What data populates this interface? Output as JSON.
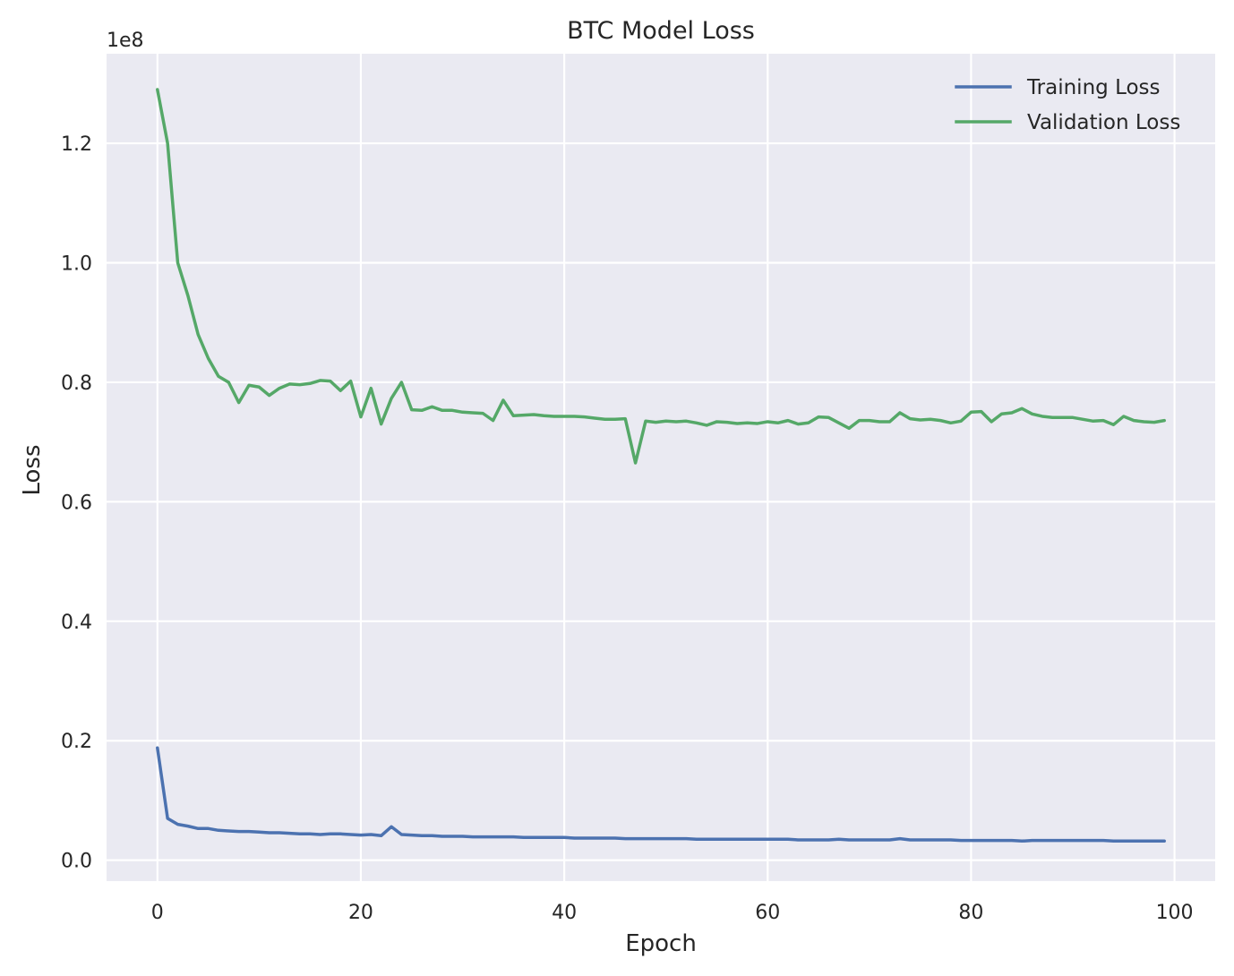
{
  "chart_data": {
    "type": "line",
    "title": "BTC Model Loss",
    "xlabel": "Epoch",
    "ylabel": "Loss",
    "y_offset_label": "1e8",
    "xlim": [
      -5,
      104
    ],
    "ylim": [
      -3.5,
      135
    ],
    "y_units": "1e6",
    "grid": true,
    "legend_position": "top-right",
    "x_ticks": [
      0,
      20,
      40,
      60,
      80,
      100
    ],
    "x_tick_labels": [
      "0",
      "20",
      "40",
      "60",
      "80",
      "100"
    ],
    "y_ticks": [
      0,
      20,
      40,
      60,
      80,
      100,
      120
    ],
    "y_tick_labels": [
      "0.0",
      "0.2",
      "0.4",
      "0.6",
      "0.8",
      "1.0",
      "1.2"
    ],
    "series": [
      {
        "name": "Training Loss",
        "color": "#4c72b0",
        "values": [
          18.8,
          7.0,
          6.0,
          5.7,
          5.3,
          5.3,
          5.0,
          4.9,
          4.8,
          4.8,
          4.7,
          4.6,
          4.6,
          4.5,
          4.4,
          4.4,
          4.3,
          4.4,
          4.4,
          4.3,
          4.2,
          4.3,
          4.1,
          5.6,
          4.3,
          4.2,
          4.1,
          4.1,
          4.0,
          4.0,
          4.0,
          3.9,
          3.9,
          3.9,
          3.9,
          3.9,
          3.8,
          3.8,
          3.8,
          3.8,
          3.8,
          3.7,
          3.7,
          3.7,
          3.7,
          3.7,
          3.6,
          3.6,
          3.6,
          3.6,
          3.6,
          3.6,
          3.6,
          3.5,
          3.5,
          3.5,
          3.5,
          3.5,
          3.5,
          3.5,
          3.5,
          3.5,
          3.5,
          3.4,
          3.4,
          3.4,
          3.4,
          3.5,
          3.4,
          3.4,
          3.4,
          3.4,
          3.4,
          3.6,
          3.4,
          3.4,
          3.4,
          3.4,
          3.4,
          3.3,
          3.3,
          3.3,
          3.3,
          3.3,
          3.3,
          3.2,
          3.3,
          3.3,
          3.3,
          3.3,
          3.3,
          3.3,
          3.3,
          3.3,
          3.2,
          3.2,
          3.2,
          3.2,
          3.2,
          3.2
        ]
      },
      {
        "name": "Validation Loss",
        "color": "#55a868",
        "values": [
          129.0,
          120.0,
          100.0,
          94.5,
          88.0,
          84.0,
          81.0,
          80.0,
          76.6,
          79.5,
          79.2,
          77.8,
          79.0,
          79.7,
          79.6,
          79.8,
          80.3,
          80.2,
          78.6,
          80.2,
          74.2,
          79.0,
          73.0,
          77.3,
          80.0,
          75.4,
          75.3,
          75.9,
          75.3,
          75.3,
          75.0,
          74.9,
          74.8,
          73.6,
          77.0,
          74.4,
          74.5,
          74.6,
          74.4,
          74.3,
          74.3,
          74.3,
          74.2,
          74.0,
          73.8,
          73.8,
          73.9,
          66.5,
          73.5,
          73.3,
          73.5,
          73.4,
          73.5,
          73.2,
          72.8,
          73.4,
          73.3,
          73.1,
          73.2,
          73.1,
          73.4,
          73.2,
          73.6,
          73.0,
          73.2,
          74.2,
          74.1,
          73.2,
          72.3,
          73.6,
          73.6,
          73.4,
          73.4,
          74.9,
          73.9,
          73.7,
          73.8,
          73.6,
          73.2,
          73.5,
          75.0,
          75.1,
          73.4,
          74.7,
          74.9,
          75.6,
          74.7,
          74.3,
          74.1,
          74.1,
          74.1,
          73.8,
          73.5,
          73.6,
          72.9,
          74.3,
          73.6,
          73.4,
          73.3,
          73.6
        ]
      }
    ]
  }
}
